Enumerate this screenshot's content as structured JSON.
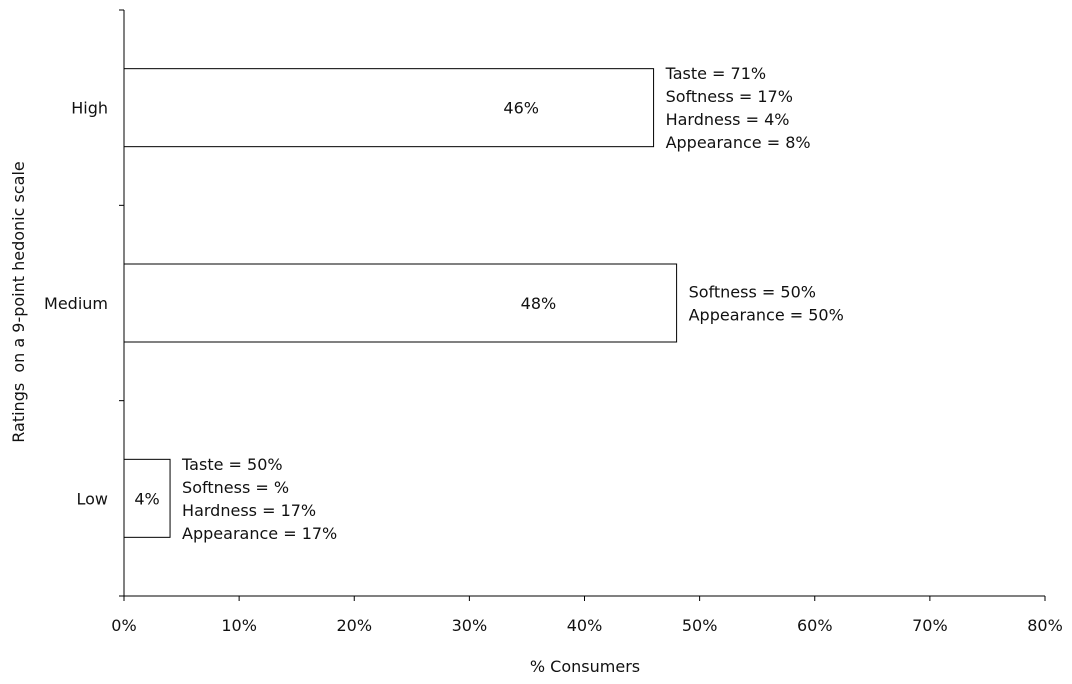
{
  "chart_data": {
    "type": "bar",
    "orientation": "horizontal",
    "title": "",
    "xlabel": "% Consumers",
    "ylabel": "Ratings  on a 9-point hedonic scale",
    "xlim": [
      0,
      80
    ],
    "x_ticks": [
      "0%",
      "10%",
      "20%",
      "30%",
      "40%",
      "50%",
      "60%",
      "70%",
      "80%"
    ],
    "x_tick_values": [
      0,
      10,
      20,
      30,
      40,
      50,
      60,
      70,
      80
    ],
    "grid": false,
    "categories": [
      "High",
      "Medium",
      "Low"
    ],
    "values": [
      46,
      48,
      4
    ],
    "value_labels": [
      "46%",
      "48%",
      "4%"
    ],
    "annotations": [
      [
        "Taste = 71%",
        "Softness = 17%",
        "Hardness = 4%",
        "Appearance = 8%"
      ],
      [
        "Softness = 50%",
        "Appearance = 50%"
      ],
      [
        "Taste = 50%",
        "Softness = %",
        "Hardness = 17%",
        "Appearance = 17%"
      ]
    ],
    "colors": {
      "bar_fill": "#ffffff",
      "bar_stroke": "#000000",
      "axis": "#000000",
      "text": "#111111"
    }
  }
}
